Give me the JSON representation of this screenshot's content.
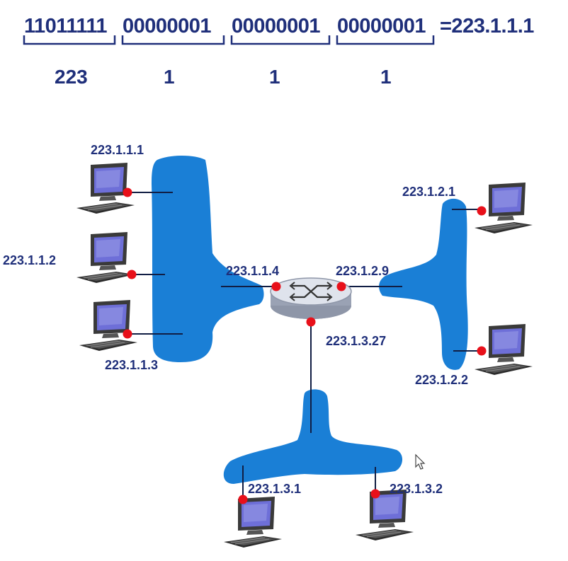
{
  "binary": {
    "octets": [
      "11011111",
      "00000001",
      "00000001",
      "00000001"
    ],
    "result": "=223.1.1.1",
    "decimals": [
      "223",
      "1",
      "1",
      "1"
    ]
  },
  "hosts": {
    "h111": "223.1.1.1",
    "h112": "223.1.1.2",
    "h113": "223.1.1.3",
    "h121": "223.1.2.1",
    "h122": "223.1.2.2",
    "h131": "223.1.3.1",
    "h132": "223.1.3.2"
  },
  "router": {
    "if1": "223.1.1.4",
    "if2": "223.1.2.9",
    "if3": "223.1.3.27"
  },
  "colors": {
    "network": "#1a7fd6",
    "interface": "#e8101a",
    "text": "#1f2f7a"
  }
}
